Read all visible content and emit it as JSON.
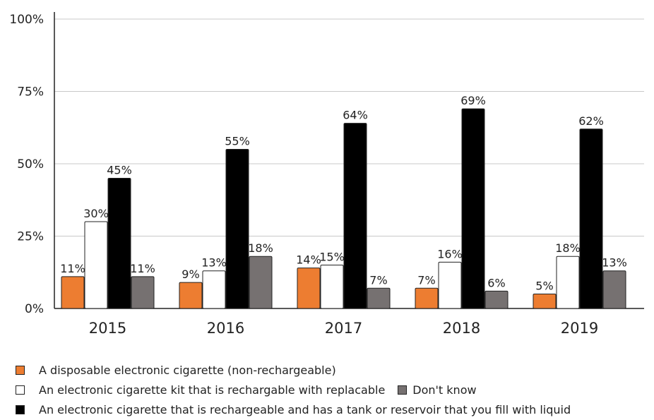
{
  "chart_data": {
    "type": "bar",
    "categories": [
      "2015",
      "2016",
      "2017",
      "2018",
      "2019"
    ],
    "series": [
      {
        "name": "A disposable electronic cigarette (non-rechargeable)",
        "values": [
          11,
          9,
          14,
          7,
          5
        ],
        "color": "#ed7d31"
      },
      {
        "name": "An electronic cigarette kit that is rechargable with replacable",
        "values": [
          30,
          13,
          15,
          16,
          18
        ],
        "color": "#ffffff"
      },
      {
        "name": "An electronic cigarette that is rechargeable and has a tank or reservoir that you fill with liquid",
        "values": [
          45,
          55,
          64,
          69,
          62
        ],
        "color": "#000000"
      },
      {
        "name": "Don't know",
        "values": [
          11,
          18,
          7,
          6,
          13
        ],
        "color": "#767171"
      }
    ],
    "data_labels": [
      [
        "11%",
        "9%",
        "14%",
        "7%",
        "5%"
      ],
      [
        "30%",
        "13%",
        "15%",
        "16%",
        "18%"
      ],
      [
        "45%",
        "55%",
        "64%",
        "69%",
        "62%"
      ],
      [
        "11%",
        "18%",
        "7%",
        "6%",
        "13%"
      ]
    ],
    "y_ticks": [
      0,
      25,
      50,
      75,
      100
    ],
    "y_tick_labels": [
      "0%",
      "25%",
      "50%",
      "75%",
      "100%"
    ],
    "ylim": [
      0,
      100
    ],
    "grid": true,
    "legend_position": "bottom",
    "title": "",
    "xlabel": "",
    "ylabel": ""
  }
}
